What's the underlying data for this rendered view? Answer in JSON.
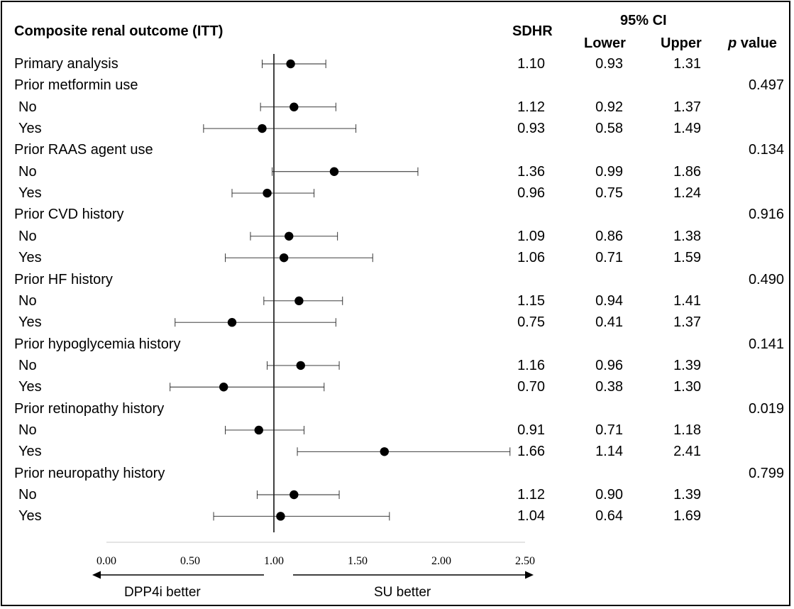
{
  "header": {
    "title": "Composite renal outcome (ITT)",
    "sdhr": "SDHR",
    "ci": "95% CI",
    "lower": "Lower",
    "upper": "Upper",
    "p_italic": "p",
    "p_rest": " value"
  },
  "rows": [
    {
      "label": "Primary analysis",
      "indent": false,
      "est": 1.1,
      "lo": 0.93,
      "hi": 1.31,
      "sdhr": "1.10",
      "lower": "0.93",
      "upper": "1.31",
      "p": ""
    },
    {
      "label": "Prior metformin use",
      "indent": false,
      "est": null,
      "lo": null,
      "hi": null,
      "sdhr": "",
      "lower": "",
      "upper": "",
      "p": "0.497"
    },
    {
      "label": "No",
      "indent": true,
      "est": 1.12,
      "lo": 0.92,
      "hi": 1.37,
      "sdhr": "1.12",
      "lower": "0.92",
      "upper": "1.37",
      "p": ""
    },
    {
      "label": "Yes",
      "indent": true,
      "est": 0.93,
      "lo": 0.58,
      "hi": 1.49,
      "sdhr": "0.93",
      "lower": "0.58",
      "upper": "1.49",
      "p": ""
    },
    {
      "label": "Prior RAAS agent use",
      "indent": false,
      "est": null,
      "lo": null,
      "hi": null,
      "sdhr": "",
      "lower": "",
      "upper": "",
      "p": "0.134"
    },
    {
      "label": "No",
      "indent": true,
      "est": 1.36,
      "lo": 0.99,
      "hi": 1.86,
      "sdhr": "1.36",
      "lower": "0.99",
      "upper": "1.86",
      "p": ""
    },
    {
      "label": "Yes",
      "indent": true,
      "est": 0.96,
      "lo": 0.75,
      "hi": 1.24,
      "sdhr": "0.96",
      "lower": "0.75",
      "upper": "1.24",
      "p": ""
    },
    {
      "label": "Prior CVD history",
      "indent": false,
      "est": null,
      "lo": null,
      "hi": null,
      "sdhr": "",
      "lower": "",
      "upper": "",
      "p": "0.916"
    },
    {
      "label": "No",
      "indent": true,
      "est": 1.09,
      "lo": 0.86,
      "hi": 1.38,
      "sdhr": "1.09",
      "lower": "0.86",
      "upper": "1.38",
      "p": ""
    },
    {
      "label": "Yes",
      "indent": true,
      "est": 1.06,
      "lo": 0.71,
      "hi": 1.59,
      "sdhr": "1.06",
      "lower": "0.71",
      "upper": "1.59",
      "p": ""
    },
    {
      "label": "Prior HF history",
      "indent": false,
      "est": null,
      "lo": null,
      "hi": null,
      "sdhr": "",
      "lower": "",
      "upper": "",
      "p": "0.490"
    },
    {
      "label": "No",
      "indent": true,
      "est": 1.15,
      "lo": 0.94,
      "hi": 1.41,
      "sdhr": "1.15",
      "lower": "0.94",
      "upper": "1.41",
      "p": ""
    },
    {
      "label": "Yes",
      "indent": true,
      "est": 0.75,
      "lo": 0.41,
      "hi": 1.37,
      "sdhr": "0.75",
      "lower": "0.41",
      "upper": "1.37",
      "p": ""
    },
    {
      "label": "Prior hypoglycemia history",
      "indent": false,
      "est": null,
      "lo": null,
      "hi": null,
      "sdhr": "",
      "lower": "",
      "upper": "",
      "p": "0.141"
    },
    {
      "label": "No",
      "indent": true,
      "est": 1.16,
      "lo": 0.96,
      "hi": 1.39,
      "sdhr": "1.16",
      "lower": "0.96",
      "upper": "1.39",
      "p": ""
    },
    {
      "label": "Yes",
      "indent": true,
      "est": 0.7,
      "lo": 0.38,
      "hi": 1.3,
      "sdhr": "0.70",
      "lower": "0.38",
      "upper": "1.30",
      "p": ""
    },
    {
      "label": "Prior retinopathy history",
      "indent": false,
      "est": null,
      "lo": null,
      "hi": null,
      "sdhr": "",
      "lower": "",
      "upper": "",
      "p": "0.019"
    },
    {
      "label": "No",
      "indent": true,
      "est": 0.91,
      "lo": 0.71,
      "hi": 1.18,
      "sdhr": "0.91",
      "lower": "0.71",
      "upper": "1.18",
      "p": ""
    },
    {
      "label": "Yes",
      "indent": true,
      "est": 1.66,
      "lo": 1.14,
      "hi": 2.41,
      "sdhr": "1.66",
      "lower": "1.14",
      "upper": "2.41",
      "p": ""
    },
    {
      "label": "Prior neuropathy history",
      "indent": false,
      "est": null,
      "lo": null,
      "hi": null,
      "sdhr": "",
      "lower": "",
      "upper": "",
      "p": "0.799"
    },
    {
      "label": "No",
      "indent": true,
      "est": 1.12,
      "lo": 0.9,
      "hi": 1.39,
      "sdhr": "1.12",
      "lower": "0.90",
      "upper": "1.39",
      "p": ""
    },
    {
      "label": "Yes",
      "indent": true,
      "est": 1.04,
      "lo": 0.64,
      "hi": 1.69,
      "sdhr": "1.04",
      "lower": "0.64",
      "upper": "1.69",
      "p": ""
    }
  ],
  "chart_data": {
    "type": "scatter",
    "subtype": "forest-plot",
    "xlim": [
      0,
      2.5
    ],
    "x_ticks": [
      "0.00",
      "0.50",
      "1.00",
      "1.50",
      "2.00",
      "2.50"
    ],
    "reference_line": 1.0,
    "left_arrow_label": "DPP4i better",
    "right_arrow_label": "SU better"
  }
}
